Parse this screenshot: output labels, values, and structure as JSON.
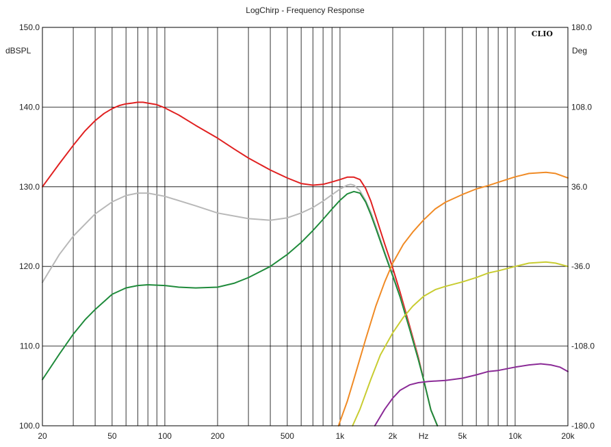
{
  "chart_data": {
    "type": "line",
    "title": "LogChirp - Frequency Response",
    "brand": "CLIO",
    "x_unit_label": "Hz",
    "x_scale": "log",
    "xlim": [
      20,
      20000
    ],
    "x_ticks": [
      {
        "value": 20,
        "label": "20"
      },
      {
        "value": 50,
        "label": "50"
      },
      {
        "value": 100,
        "label": "100"
      },
      {
        "value": 200,
        "label": "200"
      },
      {
        "value": 500,
        "label": "500"
      },
      {
        "value": 1000,
        "label": "1k"
      },
      {
        "value": 2000,
        "label": "2k"
      },
      {
        "value": 5000,
        "label": "5k"
      },
      {
        "value": 10000,
        "label": "10k"
      },
      {
        "value": 20000,
        "label": "20k"
      }
    ],
    "y_left_label": "dBSPL",
    "ylim_left": [
      100,
      150
    ],
    "y_left_ticks": [
      "100.0",
      "110.0",
      "120.0",
      "130.0",
      "140.0",
      "150.0"
    ],
    "y_right_label": "Deg",
    "ylim_right": [
      -180,
      180
    ],
    "y_right_ticks": [
      "-180.0",
      "-108.0",
      "-36.0",
      "36.0",
      "108.0",
      "180.0"
    ],
    "grid": true,
    "series": [
      {
        "color": "#e02020",
        "axis": "left",
        "points": [
          [
            20,
            130.0
          ],
          [
            25,
            132.9
          ],
          [
            30,
            135.2
          ],
          [
            35,
            137.0
          ],
          [
            40,
            138.3
          ],
          [
            45,
            139.2
          ],
          [
            50,
            139.8
          ],
          [
            55,
            140.2
          ],
          [
            60,
            140.4
          ],
          [
            65,
            140.5
          ],
          [
            70,
            140.6
          ],
          [
            75,
            140.6
          ],
          [
            80,
            140.5
          ],
          [
            90,
            140.3
          ],
          [
            100,
            139.9
          ],
          [
            120,
            139.0
          ],
          [
            150,
            137.7
          ],
          [
            200,
            136.1
          ],
          [
            250,
            134.7
          ],
          [
            300,
            133.6
          ],
          [
            400,
            132.1
          ],
          [
            500,
            131.1
          ],
          [
            600,
            130.4
          ],
          [
            700,
            130.2
          ],
          [
            800,
            130.3
          ],
          [
            900,
            130.6
          ],
          [
            1000,
            130.9
          ],
          [
            1100,
            131.2
          ],
          [
            1200,
            131.2
          ],
          [
            1300,
            130.9
          ],
          [
            1400,
            129.8
          ],
          [
            1500,
            128.2
          ],
          [
            1600,
            126.3
          ],
          [
            1800,
            122.8
          ],
          [
            2000,
            119.8
          ],
          [
            2200,
            116.8
          ],
          [
            2500,
            112.5
          ],
          [
            2800,
            108.6
          ],
          [
            3000,
            105.8
          ],
          [
            3300,
            102.0
          ],
          [
            3600,
            100.0
          ]
        ]
      },
      {
        "color": "#b8b8b8",
        "axis": "left",
        "points": [
          [
            20,
            118.0
          ],
          [
            25,
            121.5
          ],
          [
            30,
            123.8
          ],
          [
            40,
            126.6
          ],
          [
            50,
            128.1
          ],
          [
            60,
            128.9
          ],
          [
            70,
            129.2
          ],
          [
            80,
            129.2
          ],
          [
            100,
            128.8
          ],
          [
            150,
            127.6
          ],
          [
            200,
            126.7
          ],
          [
            300,
            126.0
          ],
          [
            400,
            125.8
          ],
          [
            500,
            126.1
          ],
          [
            600,
            126.7
          ],
          [
            700,
            127.4
          ],
          [
            800,
            128.2
          ],
          [
            900,
            129.0
          ],
          [
            1000,
            129.7
          ],
          [
            1100,
            130.2
          ],
          [
            1150,
            130.3
          ],
          [
            1200,
            130.2
          ],
          [
            1300,
            129.5
          ],
          [
            1400,
            128.3
          ],
          [
            1500,
            126.8
          ],
          [
            1600,
            125.1
          ],
          [
            1800,
            121.8
          ],
          [
            2000,
            119.0
          ],
          [
            2200,
            116.3
          ],
          [
            2500,
            112.2
          ],
          [
            2800,
            108.4
          ],
          [
            3000,
            105.8
          ],
          [
            3300,
            102.0
          ],
          [
            3600,
            100.0
          ]
        ]
      },
      {
        "color": "#1e8a3a",
        "axis": "left",
        "points": [
          [
            20,
            105.8
          ],
          [
            25,
            109.0
          ],
          [
            30,
            111.5
          ],
          [
            35,
            113.3
          ],
          [
            40,
            114.6
          ],
          [
            50,
            116.5
          ],
          [
            60,
            117.3
          ],
          [
            70,
            117.6
          ],
          [
            80,
            117.7
          ],
          [
            100,
            117.6
          ],
          [
            120,
            117.4
          ],
          [
            150,
            117.3
          ],
          [
            200,
            117.4
          ],
          [
            250,
            117.9
          ],
          [
            300,
            118.6
          ],
          [
            400,
            120.0
          ],
          [
            500,
            121.5
          ],
          [
            600,
            123.0
          ],
          [
            700,
            124.5
          ],
          [
            800,
            125.9
          ],
          [
            900,
            127.2
          ],
          [
            1000,
            128.3
          ],
          [
            1100,
            129.1
          ],
          [
            1200,
            129.4
          ],
          [
            1300,
            129.2
          ],
          [
            1400,
            128.1
          ],
          [
            1500,
            126.5
          ],
          [
            1600,
            124.8
          ],
          [
            1800,
            121.6
          ],
          [
            2000,
            118.8
          ],
          [
            2200,
            116.2
          ],
          [
            2500,
            112.1
          ],
          [
            2800,
            108.3
          ],
          [
            3000,
            105.8
          ],
          [
            3300,
            102.0
          ],
          [
            3600,
            100.0
          ]
        ]
      },
      {
        "color": "#f08a24",
        "axis": "right",
        "points": [
          [
            980,
            -180
          ],
          [
            1100,
            -158
          ],
          [
            1200,
            -138
          ],
          [
            1400,
            -102
          ],
          [
            1600,
            -72
          ],
          [
            1800,
            -50
          ],
          [
            2000,
            -33
          ],
          [
            2300,
            -16
          ],
          [
            2600,
            -5
          ],
          [
            3000,
            6
          ],
          [
            3500,
            16
          ],
          [
            4000,
            22
          ],
          [
            5000,
            29
          ],
          [
            6000,
            34
          ],
          [
            7000,
            37
          ],
          [
            8000,
            40
          ],
          [
            10000,
            45
          ],
          [
            12000,
            48
          ],
          [
            15000,
            49
          ],
          [
            17000,
            48
          ],
          [
            20000,
            44
          ]
        ]
      },
      {
        "color": "#c8cc30",
        "axis": "right",
        "points": [
          [
            1180,
            -180
          ],
          [
            1300,
            -165
          ],
          [
            1500,
            -138
          ],
          [
            1700,
            -116
          ],
          [
            2000,
            -96
          ],
          [
            2300,
            -82
          ],
          [
            2600,
            -72
          ],
          [
            3000,
            -63
          ],
          [
            3500,
            -57
          ],
          [
            4000,
            -54
          ],
          [
            5000,
            -50
          ],
          [
            6000,
            -46
          ],
          [
            7000,
            -42
          ],
          [
            8000,
            -40
          ],
          [
            10000,
            -36
          ],
          [
            12000,
            -33
          ],
          [
            15000,
            -32
          ],
          [
            17000,
            -33
          ],
          [
            20000,
            -36
          ]
        ]
      },
      {
        "color": "#8a2a96",
        "axis": "right",
        "points": [
          [
            1580,
            -180
          ],
          [
            1800,
            -165
          ],
          [
            2000,
            -155
          ],
          [
            2200,
            -148
          ],
          [
            2500,
            -143
          ],
          [
            2800,
            -141
          ],
          [
            3200,
            -140
          ],
          [
            4000,
            -139
          ],
          [
            5000,
            -137
          ],
          [
            6000,
            -134
          ],
          [
            7000,
            -131
          ],
          [
            8000,
            -130
          ],
          [
            10000,
            -127
          ],
          [
            12000,
            -125
          ],
          [
            14000,
            -124
          ],
          [
            16000,
            -125
          ],
          [
            18000,
            -127
          ],
          [
            20000,
            -131
          ]
        ]
      }
    ]
  }
}
